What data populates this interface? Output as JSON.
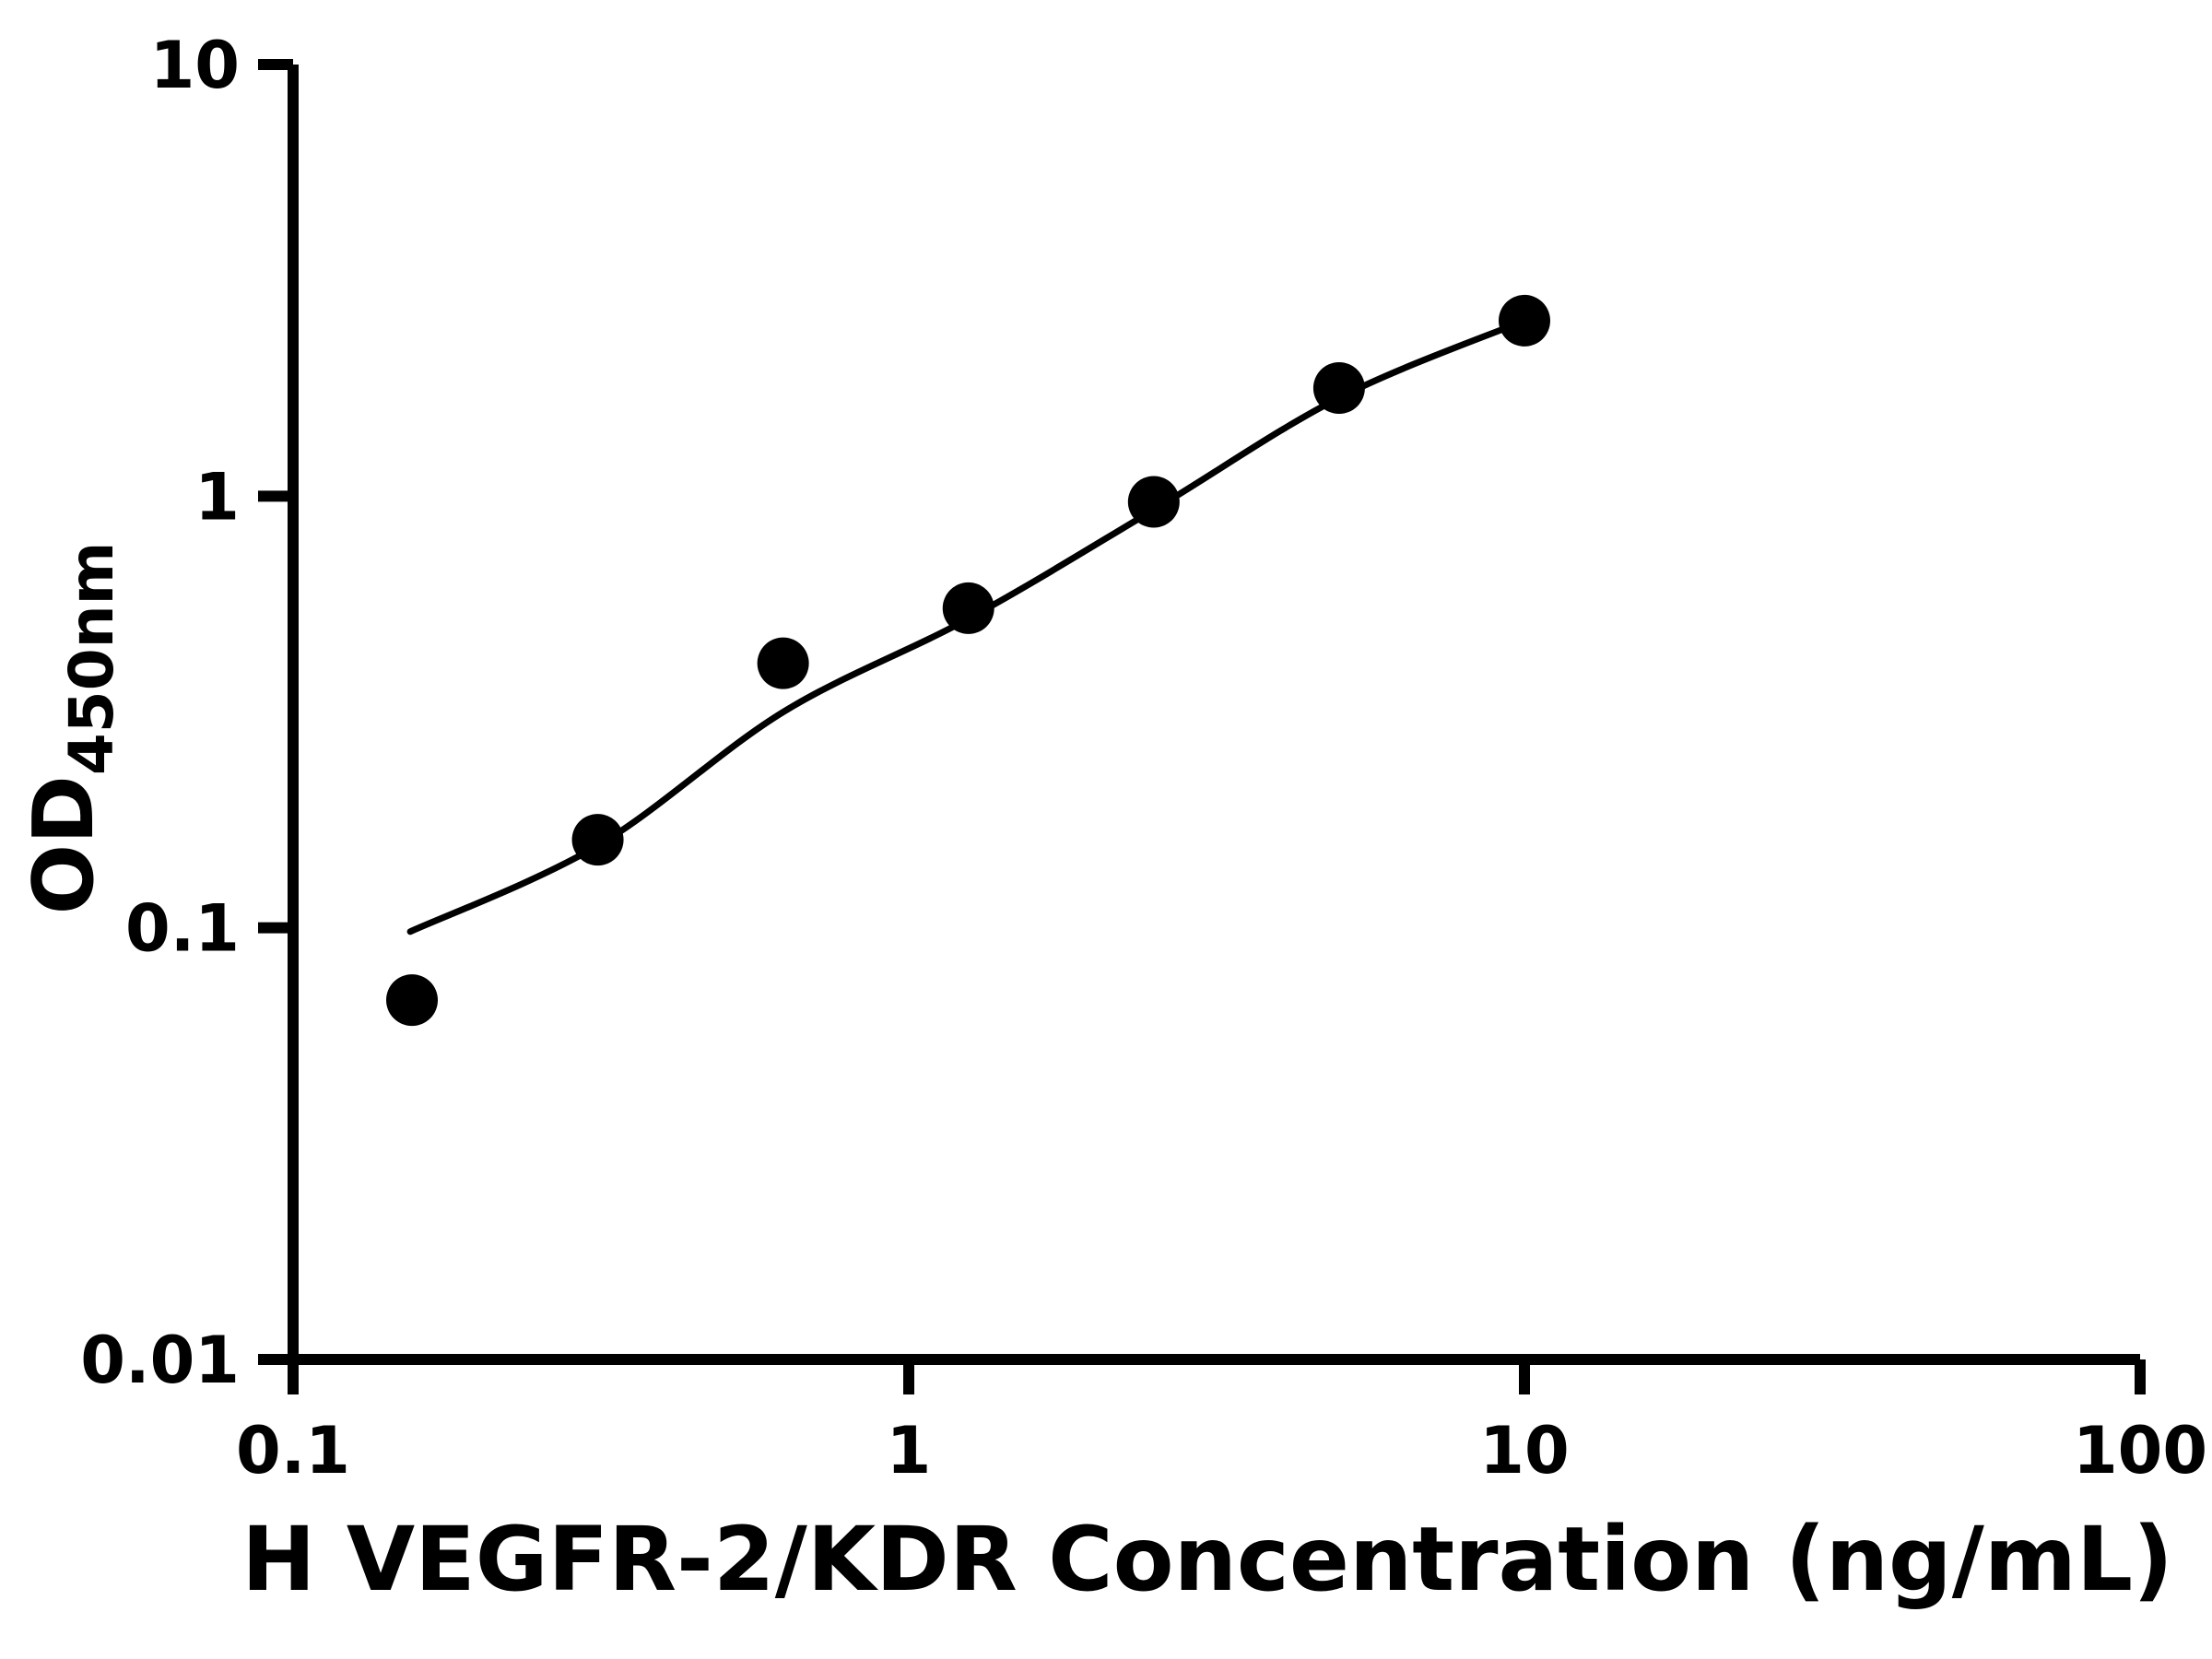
{
  "chart_data": {
    "type": "scatter",
    "title": "",
    "xlabel": "H VEGFR-2/KDR Concentration (ng/mL)",
    "ylabel": "OD",
    "ylabel_sub": "450nm",
    "x_scale": "log",
    "y_scale": "log",
    "xlim": [
      0.1,
      100
    ],
    "ylim": [
      0.01,
      10
    ],
    "x_ticks": [
      0.1,
      1,
      10,
      100
    ],
    "x_tick_labels": [
      "0.1",
      "1",
      "10",
      "100"
    ],
    "y_ticks": [
      0.01,
      0.1,
      1,
      10
    ],
    "y_tick_labels": [
      "0.01",
      "0.1",
      "1",
      "10"
    ],
    "grid": false,
    "legend": false,
    "axis_color": "#000000",
    "background_color": "#ffffff",
    "series": [
      {
        "name": "standard-data-points",
        "type": "scatter",
        "marker": "filled-circle",
        "color": "#000000",
        "x": [
          0.156,
          0.3125,
          0.625,
          1.25,
          2.5,
          5,
          10
        ],
        "y": [
          0.068,
          0.16,
          0.41,
          0.55,
          0.97,
          1.78,
          2.55
        ]
      },
      {
        "name": "fitted-curve",
        "type": "line",
        "color": "#000000",
        "x": [
          0.155,
          0.3125,
          0.625,
          1.25,
          2.5,
          5,
          10
        ],
        "y": [
          0.098,
          0.155,
          0.316,
          0.52,
          0.93,
          1.69,
          2.55
        ]
      }
    ]
  }
}
